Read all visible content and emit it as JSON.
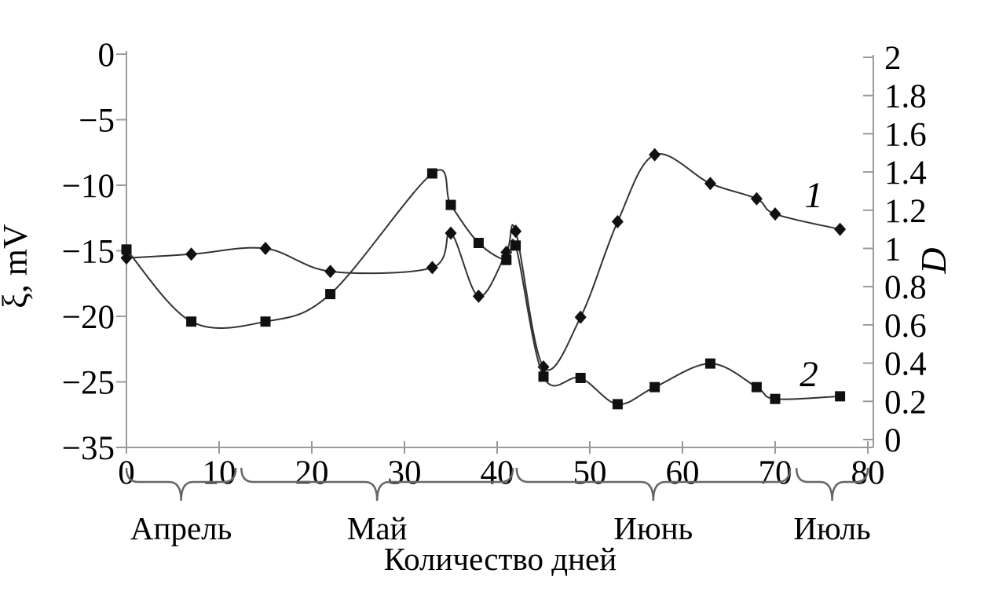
{
  "chart_data": {
    "type": "line",
    "title": "",
    "xlabel": "Количество дней",
    "x_axis": {
      "tick_labels": [
        "0",
        "10",
        "20",
        "30",
        "40",
        "50",
        "60",
        "70",
        "80"
      ],
      "range": [
        0,
        80
      ]
    },
    "left_axis": {
      "title": "ξ, mV",
      "tick_labels": [
        "0",
        "−5",
        "−10",
        "−15",
        "−20",
        "−25",
        "−35"
      ],
      "units": "mV"
    },
    "right_axis": {
      "title": "D",
      "tick_labels": [
        "2",
        "1.8",
        "1.6",
        "1.4",
        "1.2",
        "1",
        "0.8",
        "0.6",
        "0.4",
        "0.2",
        "0"
      ],
      "range": [
        2,
        0
      ]
    },
    "x_days": [
      0,
      7,
      15,
      22,
      33,
      35,
      38,
      41,
      42,
      45,
      49,
      53,
      57,
      63,
      68,
      70,
      77
    ],
    "series": [
      {
        "name": "1",
        "axis": "right",
        "marker": "diamond",
        "values": [
          0.95,
          0.97,
          1.0,
          0.88,
          0.9,
          1.08,
          0.75,
          0.98,
          1.09,
          0.38,
          0.64,
          1.14,
          1.49,
          1.34,
          1.26,
          1.18,
          1.1
        ]
      },
      {
        "name": "2",
        "axis": "left",
        "marker": "square",
        "values": [
          -14.9,
          -20.4,
          -20.4,
          -18.3,
          -9.1,
          -11.5,
          -14.4,
          -15.7,
          -14.6,
          -24.6,
          -24.7,
          -26.7,
          -25.4,
          -23.6,
          -25.4,
          -26.3,
          -26.1
        ]
      }
    ],
    "month_brackets": [
      {
        "label": "Апрель",
        "from_day": 0,
        "to_day": 11.8
      },
      {
        "label": "Май",
        "from_day": 12.4,
        "to_day": 41.7
      },
      {
        "label": "Июнь",
        "from_day": 42.1,
        "to_day": 71.6
      },
      {
        "label": "Июль",
        "from_day": 72.3,
        "to_day": 80
      }
    ],
    "legend_position": "inline-labels",
    "grid": false,
    "colors": {
      "line": "#333333",
      "marker": "#101010",
      "axis": "#9a9a9a",
      "bracket": "#666666",
      "text": "#000000",
      "background": "#ffffff"
    }
  }
}
